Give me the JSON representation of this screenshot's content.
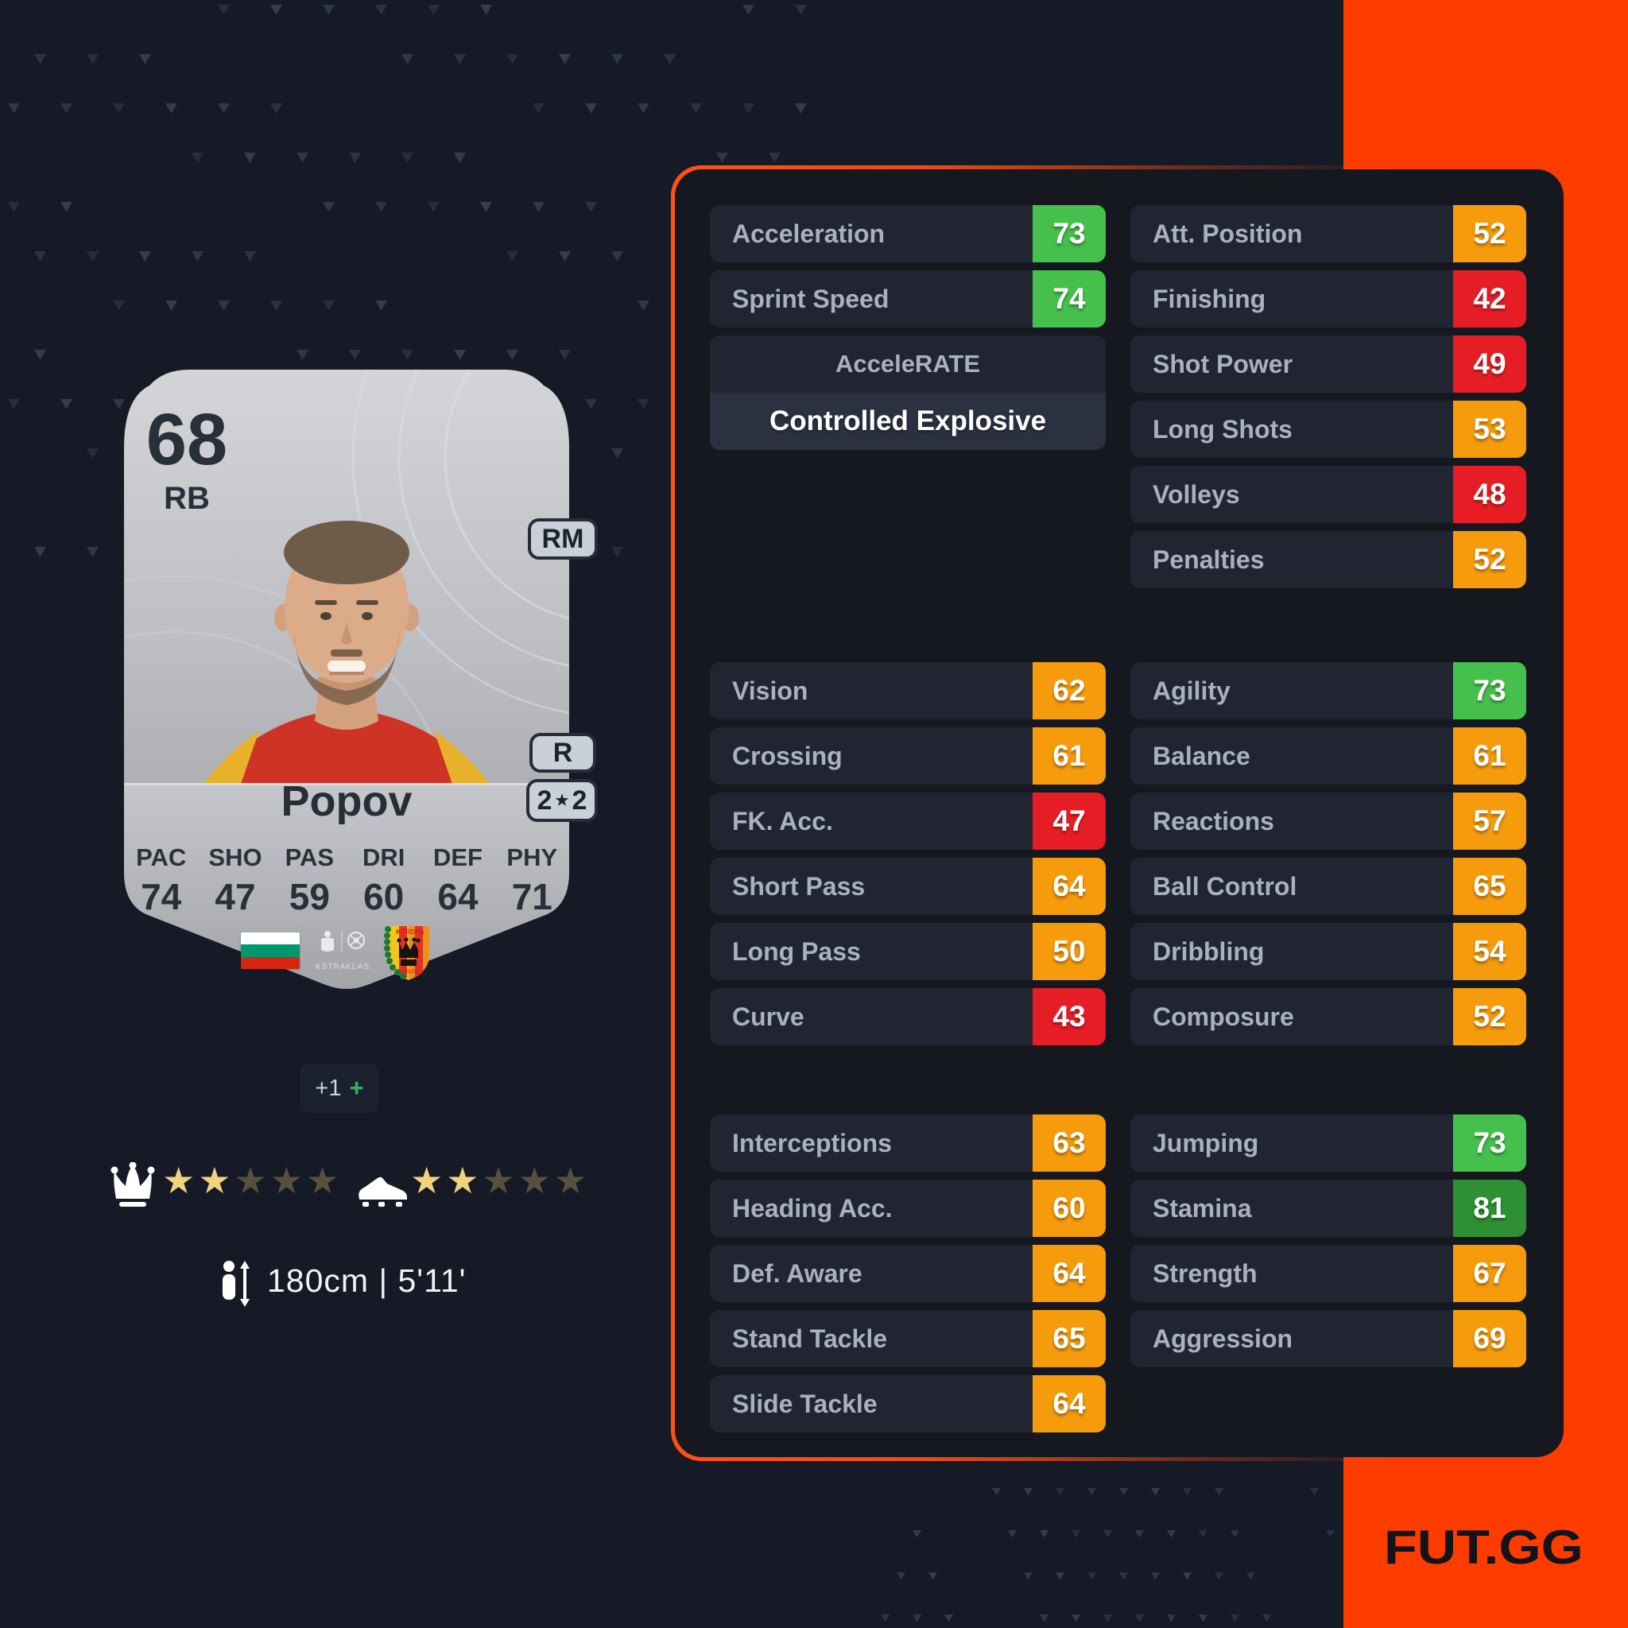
{
  "page": {
    "background": "#161a26",
    "accent_band": "#ff3c00",
    "panel_border": "#ff4a14"
  },
  "card": {
    "rating": "68",
    "position": "RB",
    "alt_position": "RM",
    "preferred_foot": "R",
    "skill_moves": "2",
    "weak_foot": "2",
    "name": "Popov",
    "face_stats": [
      {
        "label": "PAC",
        "value": "74"
      },
      {
        "label": "SHO",
        "value": "47"
      },
      {
        "label": "PAS",
        "value": "59"
      },
      {
        "label": "DRI",
        "value": "60"
      },
      {
        "label": "DEF",
        "value": "64"
      },
      {
        "label": "PHY",
        "value": "71"
      }
    ],
    "nation_icon": "bulgaria-flag",
    "league_icon": "ekstraklasa-logo",
    "league_label": "EKSTRAKLASA",
    "club_icon": "korona-kielce-badge",
    "club_label": "KORONA",
    "club_sublabel": "KIELCE"
  },
  "evolution": {
    "boost": "+1",
    "plus_icon": "+"
  },
  "ratings": {
    "skill_moves": 2,
    "weak_foot": 2,
    "max_stars": 5,
    "star_glyph": "★",
    "skill_icon": "jester-hat-icon",
    "weak_foot_icon": "boot-icon"
  },
  "physical": {
    "height_icon": "person-height-icon",
    "height": "180cm | 5'11'"
  },
  "accelerate": {
    "label": "AcceleRATE",
    "value": "Controlled Explosive"
  },
  "panel": {
    "groups": {
      "top_left": [
        {
          "label": "Acceleration",
          "value": "73",
          "tier": "green"
        },
        {
          "label": "Sprint Speed",
          "value": "74",
          "tier": "green"
        }
      ],
      "top_right": [
        {
          "label": "Att. Position",
          "value": "52",
          "tier": "orange"
        },
        {
          "label": "Finishing",
          "value": "42",
          "tier": "red"
        },
        {
          "label": "Shot Power",
          "value": "49",
          "tier": "red"
        },
        {
          "label": "Long Shots",
          "value": "53",
          "tier": "orange"
        },
        {
          "label": "Volleys",
          "value": "48",
          "tier": "red"
        },
        {
          "label": "Penalties",
          "value": "52",
          "tier": "orange"
        }
      ],
      "mid_left": [
        {
          "label": "Vision",
          "value": "62",
          "tier": "orange"
        },
        {
          "label": "Crossing",
          "value": "61",
          "tier": "orange"
        },
        {
          "label": "FK. Acc.",
          "value": "47",
          "tier": "red"
        },
        {
          "label": "Short Pass",
          "value": "64",
          "tier": "orange"
        },
        {
          "label": "Long Pass",
          "value": "50",
          "tier": "orange"
        },
        {
          "label": "Curve",
          "value": "43",
          "tier": "red"
        }
      ],
      "mid_right": [
        {
          "label": "Agility",
          "value": "73",
          "tier": "green"
        },
        {
          "label": "Balance",
          "value": "61",
          "tier": "orange"
        },
        {
          "label": "Reactions",
          "value": "57",
          "tier": "orange"
        },
        {
          "label": "Ball Control",
          "value": "65",
          "tier": "orange"
        },
        {
          "label": "Dribbling",
          "value": "54",
          "tier": "orange"
        },
        {
          "label": "Composure",
          "value": "52",
          "tier": "orange"
        }
      ],
      "bottom_left": [
        {
          "label": "Interceptions",
          "value": "63",
          "tier": "orange"
        },
        {
          "label": "Heading Acc.",
          "value": "60",
          "tier": "orange"
        },
        {
          "label": "Def. Aware",
          "value": "64",
          "tier": "orange"
        },
        {
          "label": "Stand Tackle",
          "value": "65",
          "tier": "orange"
        },
        {
          "label": "Slide Tackle",
          "value": "64",
          "tier": "orange"
        }
      ],
      "bottom_right": [
        {
          "label": "Jumping",
          "value": "73",
          "tier": "green"
        },
        {
          "label": "Stamina",
          "value": "81",
          "tier": "dgreen"
        },
        {
          "label": "Strength",
          "value": "67",
          "tier": "orange"
        },
        {
          "label": "Aggression",
          "value": "69",
          "tier": "orange"
        }
      ]
    }
  },
  "tier_colors": {
    "green": "#45c04d",
    "dgreen": "#2e9033",
    "orange": "#f59b0c",
    "red": "#e71d25"
  },
  "footer": {
    "brand": "FUT.GG"
  }
}
